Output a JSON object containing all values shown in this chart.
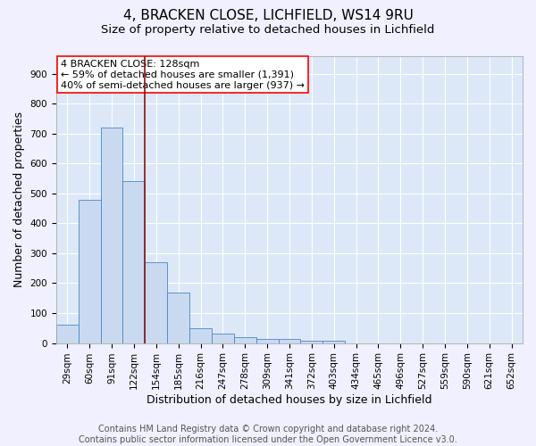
{
  "title": "4, BRACKEN CLOSE, LICHFIELD, WS14 9RU",
  "subtitle": "Size of property relative to detached houses in Lichfield",
  "xlabel": "Distribution of detached houses by size in Lichfield",
  "ylabel": "Number of detached properties",
  "categories": [
    "29sqm",
    "60sqm",
    "91sqm",
    "122sqm",
    "154sqm",
    "185sqm",
    "216sqm",
    "247sqm",
    "278sqm",
    "309sqm",
    "341sqm",
    "372sqm",
    "403sqm",
    "434sqm",
    "465sqm",
    "496sqm",
    "527sqm",
    "559sqm",
    "590sqm",
    "621sqm",
    "652sqm"
  ],
  "values": [
    60,
    480,
    720,
    540,
    270,
    170,
    48,
    33,
    20,
    15,
    15,
    8,
    8,
    0,
    0,
    0,
    0,
    0,
    0,
    0,
    0
  ],
  "bar_color": "#c9daf0",
  "bar_edge_color": "#4a86c8",
  "red_line_index": 3,
  "annotation_lines": [
    "4 BRACKEN CLOSE: 128sqm",
    "← 59% of detached houses are smaller (1,391)",
    "40% of semi-detached houses are larger (937) →"
  ],
  "annotation_box_facecolor": "white",
  "annotation_box_edgecolor": "red",
  "red_line_color": "#8b1010",
  "fig_facecolor": "#f0f0ff",
  "axes_facecolor": "#dce8f8",
  "grid_color": "white",
  "ylim": [
    0,
    960
  ],
  "yticks": [
    0,
    100,
    200,
    300,
    400,
    500,
    600,
    700,
    800,
    900
  ],
  "title_fontsize": 11,
  "subtitle_fontsize": 9.5,
  "xlabel_fontsize": 9,
  "ylabel_fontsize": 9,
  "tick_fontsize": 7.5,
  "annotation_fontsize": 8,
  "footer_fontsize": 7,
  "footer_line1": "Contains HM Land Registry data © Crown copyright and database right 2024.",
  "footer_line2": "Contains public sector information licensed under the Open Government Licence v3.0."
}
